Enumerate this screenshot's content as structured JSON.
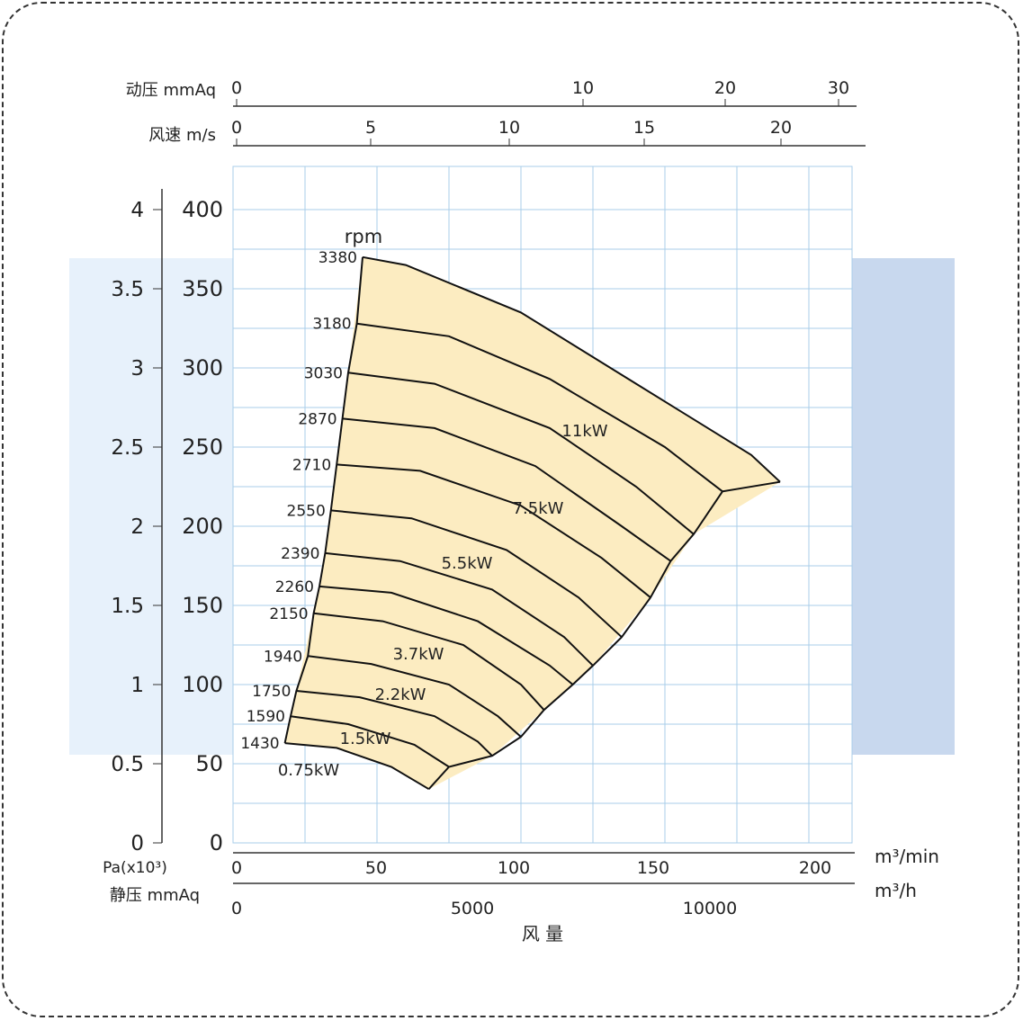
{
  "chart_data": {
    "type": "area",
    "title": "",
    "top_axes": [
      {
        "label": "动压  mmAq",
        "ticks": [
          "0",
          "10",
          "20",
          "30"
        ]
      },
      {
        "label": "风速  m/s",
        "ticks": [
          "0",
          "5",
          "10",
          "15",
          "20"
        ]
      }
    ],
    "left_axes": [
      {
        "label": "Pa(x10³)",
        "ticks": [
          "0",
          "0.5",
          "1",
          "1.5",
          "2",
          "2.5",
          "3",
          "3.5",
          "4"
        ]
      },
      {
        "label": "静压 mmAq",
        "ticks": [
          "0",
          "50",
          "100",
          "150",
          "200",
          "250",
          "300",
          "350",
          "400"
        ]
      }
    ],
    "bottom_axes": [
      {
        "unit": "m³/min",
        "ticks": [
          "0",
          "50",
          "100",
          "150",
          "200"
        ]
      },
      {
        "unit": "m³/h",
        "ticks": [
          "0",
          "5000",
          "10000"
        ]
      }
    ],
    "xlabel": "风  量",
    "rpm_label": "rpm",
    "xlim": [
      0,
      215
    ],
    "ylim": [
      0,
      400
    ],
    "grid": true,
    "series": [
      {
        "rpm": "3380",
        "curve": [
          [
            45,
            370
          ],
          [
            60,
            365
          ],
          [
            100,
            335
          ],
          [
            140,
            290
          ],
          [
            180,
            245
          ],
          [
            190,
            228
          ]
        ]
      },
      {
        "rpm": "3180",
        "curve": [
          [
            43,
            328
          ],
          [
            75,
            320
          ],
          [
            110,
            293
          ],
          [
            150,
            250
          ],
          [
            170,
            222
          ]
        ]
      },
      {
        "rpm": "3030",
        "curve": [
          [
            40,
            297
          ],
          [
            70,
            290
          ],
          [
            110,
            262
          ],
          [
            140,
            225
          ],
          [
            160,
            195
          ]
        ]
      },
      {
        "rpm": "2870",
        "curve": [
          [
            38,
            268
          ],
          [
            70,
            262
          ],
          [
            105,
            238
          ],
          [
            135,
            200
          ],
          [
            152,
            178
          ]
        ]
      },
      {
        "rpm": "2710",
        "curve": [
          [
            36,
            239
          ],
          [
            65,
            235
          ],
          [
            100,
            213
          ],
          [
            128,
            180
          ],
          [
            145,
            155
          ]
        ]
      },
      {
        "rpm": "2550",
        "curve": [
          [
            34,
            210
          ],
          [
            62,
            205
          ],
          [
            95,
            185
          ],
          [
            120,
            155
          ],
          [
            135,
            130
          ]
        ]
      },
      {
        "rpm": "2390",
        "curve": [
          [
            32,
            183
          ],
          [
            58,
            178
          ],
          [
            90,
            160
          ],
          [
            115,
            130
          ],
          [
            125,
            112
          ]
        ]
      },
      {
        "rpm": "2260",
        "curve": [
          [
            30,
            162
          ],
          [
            55,
            158
          ],
          [
            85,
            140
          ],
          [
            110,
            112
          ],
          [
            118,
            100
          ]
        ]
      },
      {
        "rpm": "2150",
        "curve": [
          [
            28,
            145
          ],
          [
            52,
            140
          ],
          [
            80,
            125
          ],
          [
            100,
            100
          ],
          [
            108,
            84
          ]
        ]
      },
      {
        "rpm": "1940",
        "curve": [
          [
            26,
            118
          ],
          [
            48,
            113
          ],
          [
            75,
            100
          ],
          [
            92,
            80
          ],
          [
            100,
            67
          ]
        ]
      },
      {
        "rpm": "1750",
        "curve": [
          [
            22,
            96
          ],
          [
            44,
            92
          ],
          [
            70,
            80
          ],
          [
            85,
            64
          ],
          [
            90,
            55
          ]
        ]
      },
      {
        "rpm": "1590",
        "curve": [
          [
            20,
            80
          ],
          [
            40,
            75
          ],
          [
            63,
            62
          ],
          [
            75,
            48
          ]
        ]
      },
      {
        "rpm": "1430",
        "curve": [
          [
            18,
            63
          ],
          [
            36,
            60
          ],
          [
            55,
            48
          ],
          [
            68,
            34
          ]
        ]
      }
    ],
    "power_labels": [
      "11kW",
      "7.5kW",
      "5.5kW",
      "3.7kW",
      "2.2kW",
      "1.5kW",
      "0.75kW"
    ],
    "colors": {
      "band": "#fcecc1",
      "grid": "#a9cdea",
      "left_panel": "#e7f1fb",
      "right_panel": "#c8d8ee",
      "line": "#111111"
    }
  }
}
